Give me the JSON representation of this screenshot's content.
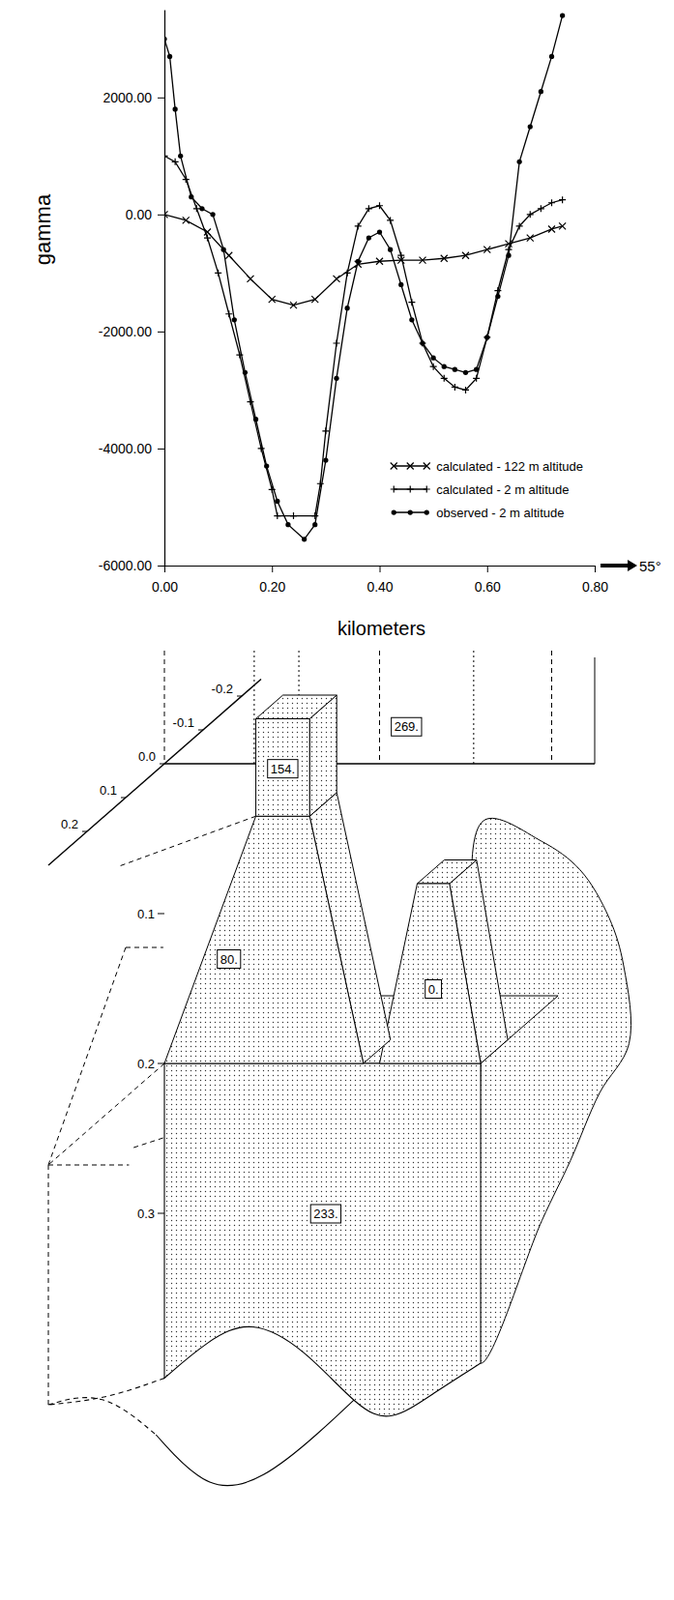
{
  "chart_data": {
    "type": "line",
    "x_label": "kilometers",
    "y_label": "gamma",
    "xlim": [
      0,
      0.8
    ],
    "xticks": [
      {
        "value": 0,
        "label": "0.00"
      },
      {
        "value": 0.2,
        "label": "0.20"
      },
      {
        "value": 0.4,
        "label": "0.40"
      },
      {
        "value": 0.6,
        "label": "0.60"
      },
      {
        "value": 0.8,
        "label": "0.80"
      }
    ],
    "ylim": [
      -6000,
      3500
    ],
    "yticks": [
      {
        "value": -6000,
        "label": "-6000.00"
      },
      {
        "value": -4000,
        "label": "-4000.00"
      },
      {
        "value": -2000,
        "label": "-2000.00"
      },
      {
        "value": 0,
        "label": "0.00"
      },
      {
        "value": 2000,
        "label": "2000.00"
      }
    ],
    "legend": "lower right",
    "annotation": "55°",
    "series": [
      {
        "name": "calculated - 122 m altitude",
        "color": "#000000",
        "marker": "x",
        "line_style": "solid",
        "x": [
          0,
          0.04,
          0.08,
          0.12,
          0.16,
          0.2,
          0.24,
          0.28,
          0.32,
          0.36,
          0.4,
          0.44,
          0.48,
          0.52,
          0.56,
          0.6,
          0.64,
          0.68,
          0.72,
          0.74
        ],
        "values": [
          0,
          -100,
          -300,
          -700,
          -1100,
          -1450,
          -1550,
          -1450,
          -1100,
          -850,
          -800,
          -780,
          -780,
          -750,
          -700,
          -600,
          -500,
          -400,
          -250,
          -200
        ]
      },
      {
        "name": "calculated - 2 m altitude",
        "color": "#000000",
        "marker": "plus",
        "line_style": "solid",
        "x": [
          0,
          0.02,
          0.04,
          0.06,
          0.08,
          0.1,
          0.12,
          0.14,
          0.16,
          0.18,
          0.2,
          0.21,
          0.24,
          0.28,
          0.29,
          0.3,
          0.32,
          0.34,
          0.36,
          0.38,
          0.4,
          0.42,
          0.44,
          0.46,
          0.48,
          0.5,
          0.52,
          0.54,
          0.56,
          0.58,
          0.6,
          0.62,
          0.64,
          0.66,
          0.68,
          0.7,
          0.72,
          0.74
        ],
        "values": [
          1000,
          900,
          600,
          100,
          -400,
          -1000,
          -1700,
          -2400,
          -3200,
          -4000,
          -4700,
          -5150,
          -5150,
          -5150,
          -4600,
          -3700,
          -2200,
          -1000,
          -200,
          100,
          150,
          -100,
          -700,
          -1500,
          -2200,
          -2600,
          -2800,
          -2950,
          -3000,
          -2800,
          -2100,
          -1300,
          -600,
          -200,
          0,
          100,
          200,
          250
        ]
      },
      {
        "name": "observed - 2 m altitude",
        "color": "#000000",
        "marker": "circle",
        "line_style": "solid",
        "x": [
          0,
          0.01,
          0.02,
          0.03,
          0.05,
          0.07,
          0.09,
          0.11,
          0.13,
          0.15,
          0.17,
          0.19,
          0.21,
          0.23,
          0.26,
          0.28,
          0.3,
          0.32,
          0.34,
          0.36,
          0.38,
          0.4,
          0.42,
          0.44,
          0.46,
          0.48,
          0.5,
          0.52,
          0.54,
          0.56,
          0.58,
          0.6,
          0.62,
          0.64,
          0.66,
          0.68,
          0.7,
          0.72,
          0.74
        ],
        "values": [
          3000,
          2700,
          1800,
          1000,
          300,
          100,
          0,
          -600,
          -1800,
          -2700,
          -3500,
          -4300,
          -4900,
          -5300,
          -5550,
          -5300,
          -4200,
          -2800,
          -1600,
          -800,
          -400,
          -300,
          -600,
          -1200,
          -1800,
          -2200,
          -2450,
          -2600,
          -2650,
          -2700,
          -2650,
          -2100,
          -1400,
          -700,
          900,
          1500,
          2100,
          2700,
          3400
        ]
      }
    ]
  },
  "diagram": {
    "oblique_axis": {
      "ticks": [
        {
          "value": -0.2,
          "label": "-0.2"
        },
        {
          "value": -0.1,
          "label": "-0.1"
        },
        {
          "value": 0.0,
          "label": "0.0"
        },
        {
          "value": 0.1,
          "label": "0.1"
        },
        {
          "value": 0.2,
          "label": "0.2"
        }
      ]
    },
    "depth_axis": {
      "ticks": [
        {
          "value": 0.1,
          "label": "0.1"
        },
        {
          "value": 0.2,
          "label": "0.2"
        },
        {
          "value": 0.3,
          "label": "0.3"
        }
      ]
    },
    "bodies": [
      {
        "label": "269."
      },
      {
        "label": "154."
      },
      {
        "label": "80."
      },
      {
        "label": "0."
      },
      {
        "label": "233."
      }
    ]
  }
}
